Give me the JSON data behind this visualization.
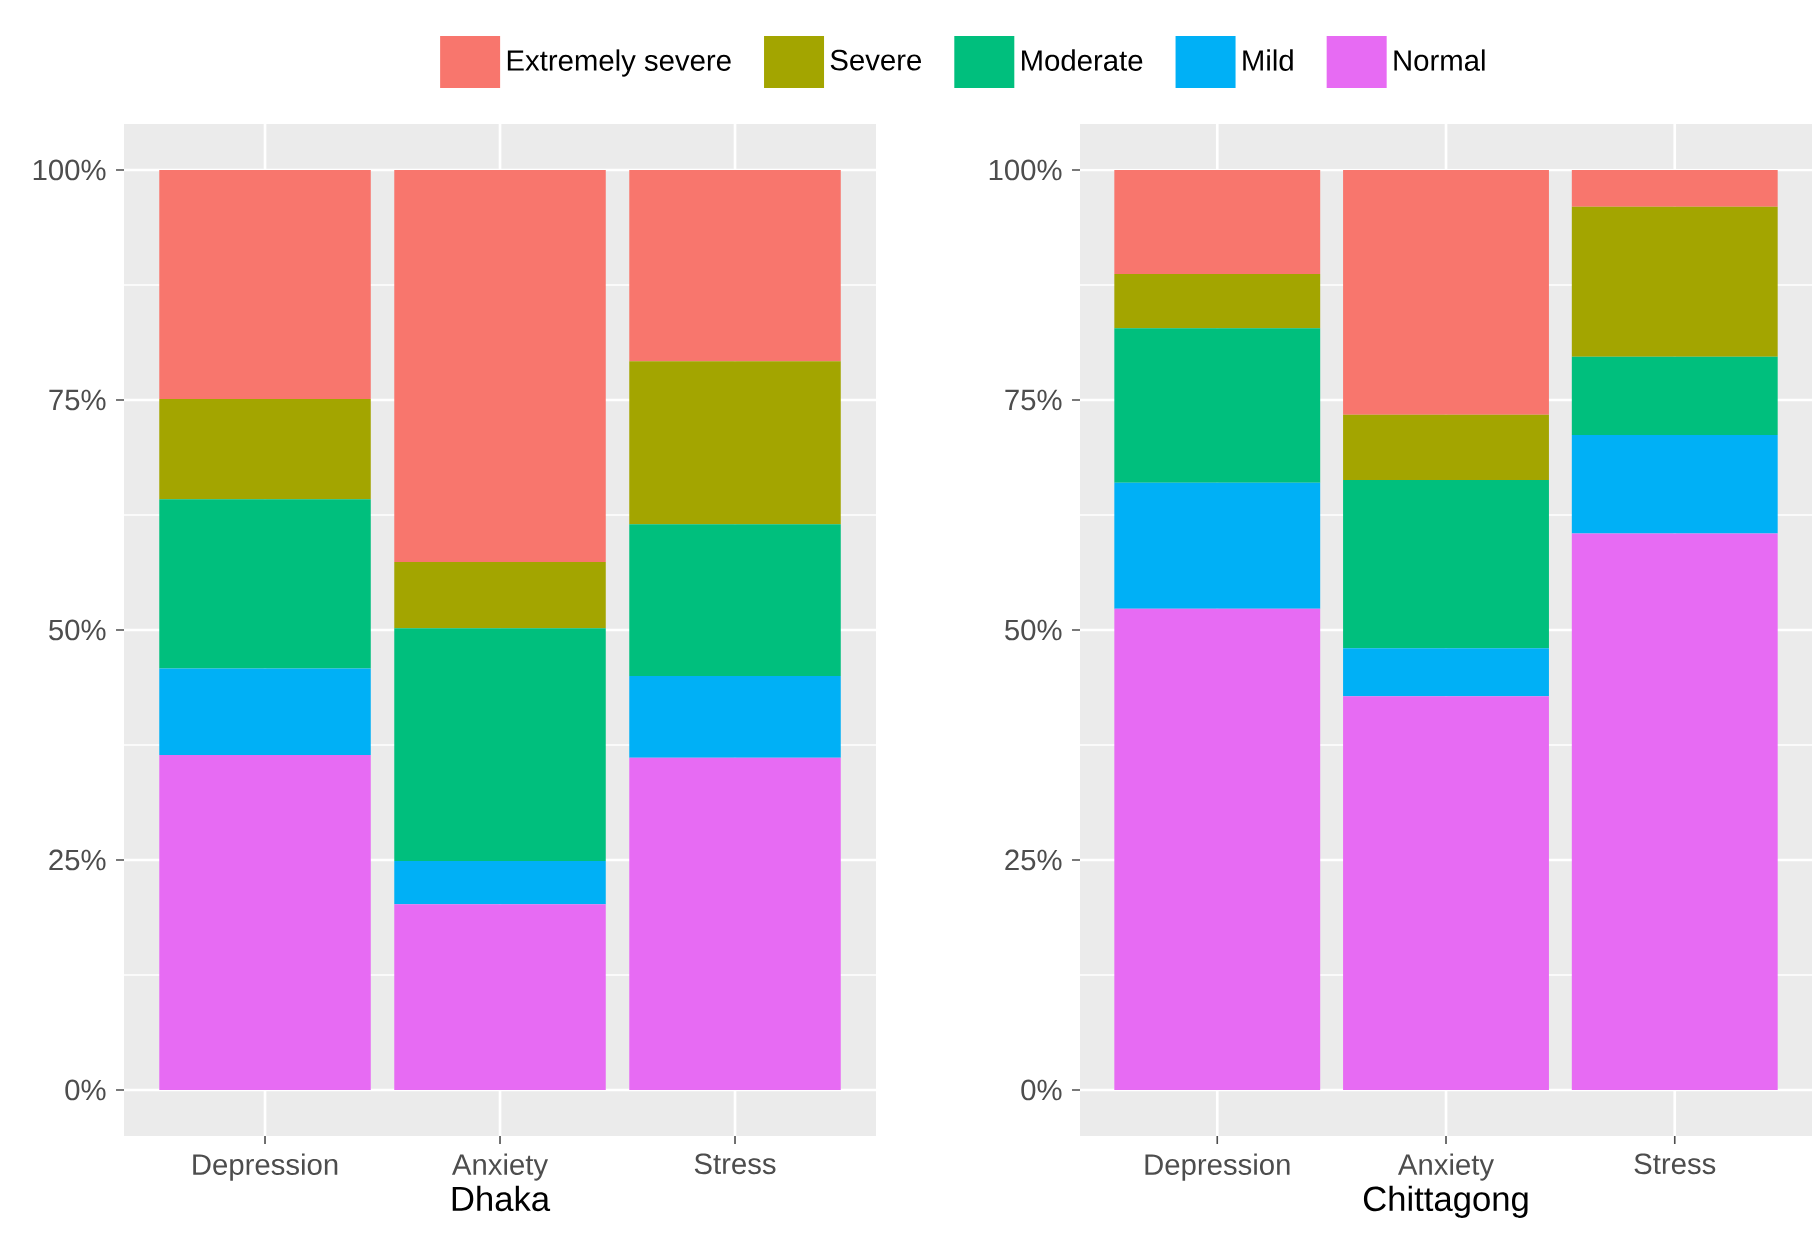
{
  "chart_data": [
    {
      "type": "bar",
      "stacked": true,
      "xlabel": "Dhaka",
      "categories": [
        "Depression",
        "Anxiety",
        "Stress"
      ],
      "ylim": [
        -5,
        105
      ],
      "yticks": [
        {
          "value": 0,
          "label": "0%"
        },
        {
          "value": 25,
          "label": "25%"
        },
        {
          "value": 50,
          "label": "50%"
        },
        {
          "value": 75,
          "label": "75%"
        },
        {
          "value": 100,
          "label": "100%"
        }
      ],
      "grid": true,
      "legend": "top",
      "series": [
        {
          "name": "Normal",
          "color": "#e76bf3",
          "values": [
            36.4,
            20.2,
            36.1
          ]
        },
        {
          "name": "Mild",
          "color": "#00b0f6",
          "values": [
            9.4,
            4.7,
            8.9
          ]
        },
        {
          "name": "Moderate",
          "color": "#00bf7d",
          "values": [
            18.4,
            25.3,
            16.5
          ]
        },
        {
          "name": "Severe",
          "color": "#a3a500",
          "values": [
            10.9,
            7.2,
            17.7
          ]
        },
        {
          "name": "Extremely severe",
          "color": "#f8766d",
          "values": [
            24.9,
            42.6,
            20.8
          ]
        }
      ]
    },
    {
      "type": "bar",
      "stacked": true,
      "xlabel": "Chittagong",
      "categories": [
        "Depression",
        "Anxiety",
        "Stress"
      ],
      "ylim": [
        -5,
        105
      ],
      "yticks": [
        {
          "value": 0,
          "label": "0%"
        },
        {
          "value": 25,
          "label": "25%"
        },
        {
          "value": 50,
          "label": "50%"
        },
        {
          "value": 75,
          "label": "75%"
        },
        {
          "value": 100,
          "label": "100%"
        }
      ],
      "grid": true,
      "series": [
        {
          "color": "#e76bf3",
          "values": [
            52.3,
            42.8,
            60.5
          ]
        },
        {
          "color": "#00b0f6",
          "values": [
            13.7,
            5.2,
            10.7
          ]
        },
        {
          "color": "#00bf7d",
          "values": [
            16.8,
            18.3,
            8.5
          ]
        },
        {
          "color": "#a3a500",
          "values": [
            5.9,
            7.1,
            16.3
          ]
        },
        {
          "color": "#f8766d",
          "values": [
            11.3,
            26.6,
            4.0
          ]
        }
      ]
    }
  ]
}
